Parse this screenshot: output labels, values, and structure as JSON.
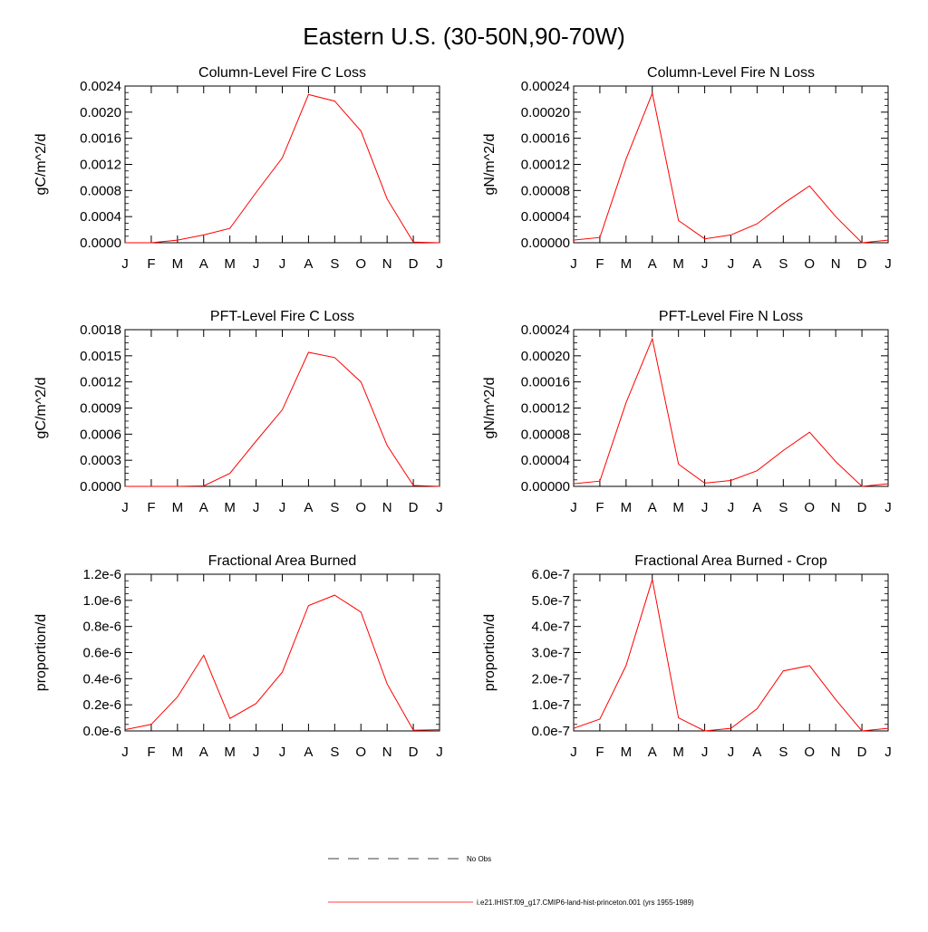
{
  "figure": {
    "title": "Eastern U.S. (30-50N,90-70W)"
  },
  "legend": {
    "entries": [
      {
        "label": "No Obs",
        "style": "dashed",
        "color": "#000000"
      },
      {
        "label": "i.e21.IHIST.f09_g17.CMIP6-land-hist-princeton.001 (yrs 1955-1989)",
        "style": "solid",
        "color": "#ff0000"
      }
    ]
  },
  "chart_data": [
    {
      "type": "line",
      "title": "Column-Level Fire C Loss",
      "ylabel": "gC/m^2/d",
      "categories": [
        "J",
        "F",
        "M",
        "A",
        "M",
        "J",
        "J",
        "A",
        "S",
        "O",
        "N",
        "D",
        "J"
      ],
      "ylim": [
        0,
        0.0024
      ],
      "yticks": [
        "0.0000",
        "0.0004",
        "0.0008",
        "0.0012",
        "0.0016",
        "0.0020",
        "0.0024"
      ],
      "series": [
        {
          "color": "#ff0000",
          "values": [
            0.0,
            0.0,
            4e-05,
            0.00012,
            0.00022,
            0.00077,
            0.0013,
            0.00227,
            0.00217,
            0.00171,
            0.00067,
            1e-05,
            0.0
          ]
        }
      ]
    },
    {
      "type": "line",
      "title": "Column-Level Fire N Loss",
      "ylabel": "gN/m^2/d",
      "categories": [
        "J",
        "F",
        "M",
        "A",
        "M",
        "J",
        "J",
        "A",
        "S",
        "O",
        "N",
        "D",
        "J"
      ],
      "ylim": [
        0,
        0.00024
      ],
      "yticks": [
        "0.00000",
        "0.00004",
        "0.00008",
        "0.00012",
        "0.00016",
        "0.00020",
        "0.00024"
      ],
      "series": [
        {
          "color": "#ff0000",
          "values": [
            4e-06,
            8e-06,
            0.000128,
            0.000229,
            3.4e-05,
            6e-06,
            1.2e-05,
            2.9e-05,
            6e-05,
            8.7e-05,
            4e-05,
            0.0,
            4e-06
          ]
        }
      ]
    },
    {
      "type": "line",
      "title": "PFT-Level Fire C Loss",
      "ylabel": "gC/m^2/d",
      "categories": [
        "J",
        "F",
        "M",
        "A",
        "M",
        "J",
        "J",
        "A",
        "S",
        "O",
        "N",
        "D",
        "J"
      ],
      "ylim": [
        0,
        0.0018
      ],
      "yticks": [
        "0.0000",
        "0.0003",
        "0.0006",
        "0.0009",
        "0.0012",
        "0.0015",
        "0.0018"
      ],
      "series": [
        {
          "color": "#ff0000",
          "values": [
            0.0,
            0.0,
            0.0,
            5e-06,
            0.00015,
            0.00052,
            0.00088,
            0.00154,
            0.00148,
            0.0012,
            0.00047,
            1e-05,
            0.0
          ]
        }
      ]
    },
    {
      "type": "line",
      "title": "PFT-Level Fire N Loss",
      "ylabel": "gN/m^2/d",
      "categories": [
        "J",
        "F",
        "M",
        "A",
        "M",
        "J",
        "J",
        "A",
        "S",
        "O",
        "N",
        "D",
        "J"
      ],
      "ylim": [
        0,
        0.00024
      ],
      "yticks": [
        "0.00000",
        "0.00004",
        "0.00008",
        "0.00012",
        "0.00016",
        "0.00020",
        "0.00024"
      ],
      "series": [
        {
          "color": "#ff0000",
          "values": [
            4e-06,
            8e-06,
            0.000128,
            0.000226,
            3.4e-05,
            5e-06,
            9e-06,
            2.4e-05,
            5.5e-05,
            8.3e-05,
            3.8e-05,
            0.0,
            4e-06
          ]
        }
      ]
    },
    {
      "type": "line",
      "title": "Fractional Area Burned",
      "ylabel": "proportion/d",
      "categories": [
        "J",
        "F",
        "M",
        "A",
        "M",
        "J",
        "J",
        "A",
        "S",
        "O",
        "N",
        "D",
        "J"
      ],
      "ylim": [
        0,
        1.2e-06
      ],
      "yticks": [
        "0.0e-6",
        "0.2e-6",
        "0.4e-6",
        "0.6e-6",
        "0.8e-6",
        "1.0e-6",
        "1.2e-6"
      ],
      "series": [
        {
          "color": "#ff0000",
          "values": [
            1e-08,
            5e-08,
            2.6e-07,
            5.8e-07,
            9.5e-08,
            2.1e-07,
            4.5e-07,
            9.6e-07,
            1.04e-06,
            9.1e-07,
            3.6e-07,
            5e-09,
            1e-08
          ]
        }
      ]
    },
    {
      "type": "line",
      "title": "Fractional Area Burned - Crop",
      "ylabel": "proportion/d",
      "categories": [
        "J",
        "F",
        "M",
        "A",
        "M",
        "J",
        "J",
        "A",
        "S",
        "O",
        "N",
        "D",
        "J"
      ],
      "ylim": [
        0,
        6e-07
      ],
      "yticks": [
        "0.0e-7",
        "1.0e-7",
        "2.0e-7",
        "3.0e-7",
        "4.0e-7",
        "5.0e-7",
        "6.0e-7"
      ],
      "series": [
        {
          "color": "#ff0000",
          "values": [
            1e-08,
            4.5e-08,
            2.5e-07,
            5.8e-07,
            5e-08,
            0.0,
            1e-08,
            8.5e-08,
            2.3e-07,
            2.5e-07,
            1.2e-07,
            0.0,
            1e-08
          ]
        }
      ]
    }
  ]
}
